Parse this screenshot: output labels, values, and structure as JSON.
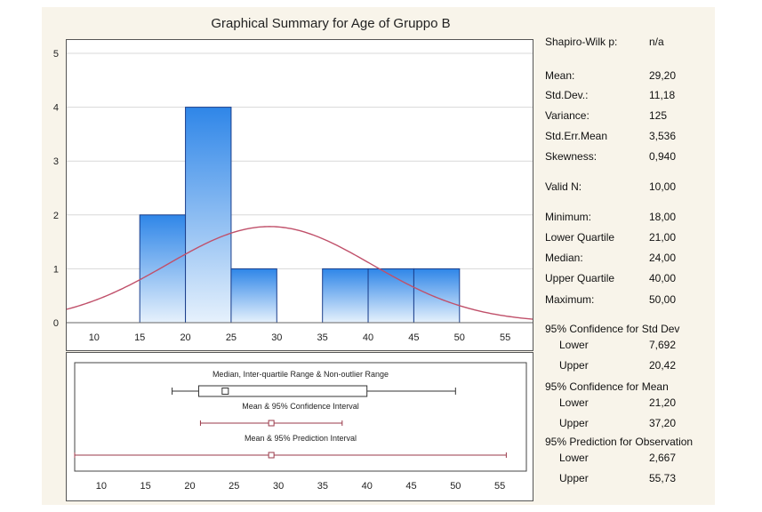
{
  "chart_data": [
    {
      "type": "bar",
      "subtype": "histogram-with-normal-fit",
      "title": "Graphical Summary for Age of Gruppo B",
      "xlim": [
        7,
        58
      ],
      "ylim": [
        0,
        5
      ],
      "xticks": [
        10,
        15,
        20,
        25,
        30,
        35,
        40,
        45,
        50,
        55
      ],
      "yticks": [
        0,
        1,
        2,
        3,
        4,
        5
      ],
      "grid": true,
      "bins": [
        {
          "from": 15,
          "to": 20,
          "count": 2
        },
        {
          "from": 20,
          "to": 25,
          "count": 4
        },
        {
          "from": 25,
          "to": 30,
          "count": 1
        },
        {
          "from": 30,
          "to": 35,
          "count": 0
        },
        {
          "from": 35,
          "to": 40,
          "count": 1
        },
        {
          "from": 40,
          "to": 45,
          "count": 1
        },
        {
          "from": 45,
          "to": 50,
          "count": 1
        }
      ],
      "normal_fit": {
        "mean": 29.2,
        "sd": 11.18,
        "bin_width": 5,
        "n": 10
      },
      "colors": {
        "bar_top": "#2f86e8",
        "bar_bottom": "#e6f1fc",
        "bar_edge": "#1b3f8c",
        "curve": "#c0506a"
      }
    },
    {
      "type": "boxplot",
      "xlim": [
        7,
        58
      ],
      "xticks": [
        10,
        15,
        20,
        25,
        30,
        35,
        40,
        45,
        50,
        55
      ],
      "rows": [
        {
          "label": "Median, Inter-quartile Range & Non-outlier Range",
          "kind": "box",
          "min": 18,
          "q1": 21,
          "median": 24,
          "q3": 40,
          "max": 50
        },
        {
          "label": "Mean & 95% Confidence Interval",
          "kind": "interval",
          "center": 29.2,
          "low": 21.2,
          "high": 37.2
        },
        {
          "label": "Mean & 95% Prediction Interval",
          "kind": "interval",
          "center": 29.2,
          "low": 2.667,
          "high": 55.73
        }
      ],
      "colors": {
        "box": "#333333",
        "interval": "#9a3a4a"
      }
    }
  ],
  "stats": {
    "rows": [
      {
        "label": "Shapiro-Wilk p:",
        "value": "n/a"
      },
      {
        "label": "Mean:",
        "value": "29,20"
      },
      {
        "label": "Std.Dev.:",
        "value": "11,18"
      },
      {
        "label": "Variance:",
        "value": "125"
      },
      {
        "label": "Std.Err.Mean",
        "value": "3,536"
      },
      {
        "label": "Skewness:",
        "value": "0,940"
      },
      {
        "label": "Valid N:",
        "value": "10,00"
      },
      {
        "label": "Minimum:",
        "value": "18,00"
      },
      {
        "label": "Lower Quartile",
        "value": "21,00"
      },
      {
        "label": "Median:",
        "value": "24,00"
      },
      {
        "label": "Upper Quartile",
        "value": "40,00"
      },
      {
        "label": "Maximum:",
        "value": "50,00"
      }
    ],
    "ci_std": {
      "heading": "95% Confidence for Std Dev",
      "lower_label": "Lower",
      "lower": "7,692",
      "upper_label": "Upper",
      "upper": "20,42"
    },
    "ci_mean": {
      "heading": "95% Confidence for Mean",
      "lower_label": "Lower",
      "lower": "21,20",
      "upper_label": "Upper",
      "upper": "37,20"
    },
    "pi_obs": {
      "heading": "95% Prediction for Observation",
      "lower_label": "Lower",
      "lower": "2,667",
      "upper_label": "Upper",
      "upper": "55,73"
    }
  }
}
